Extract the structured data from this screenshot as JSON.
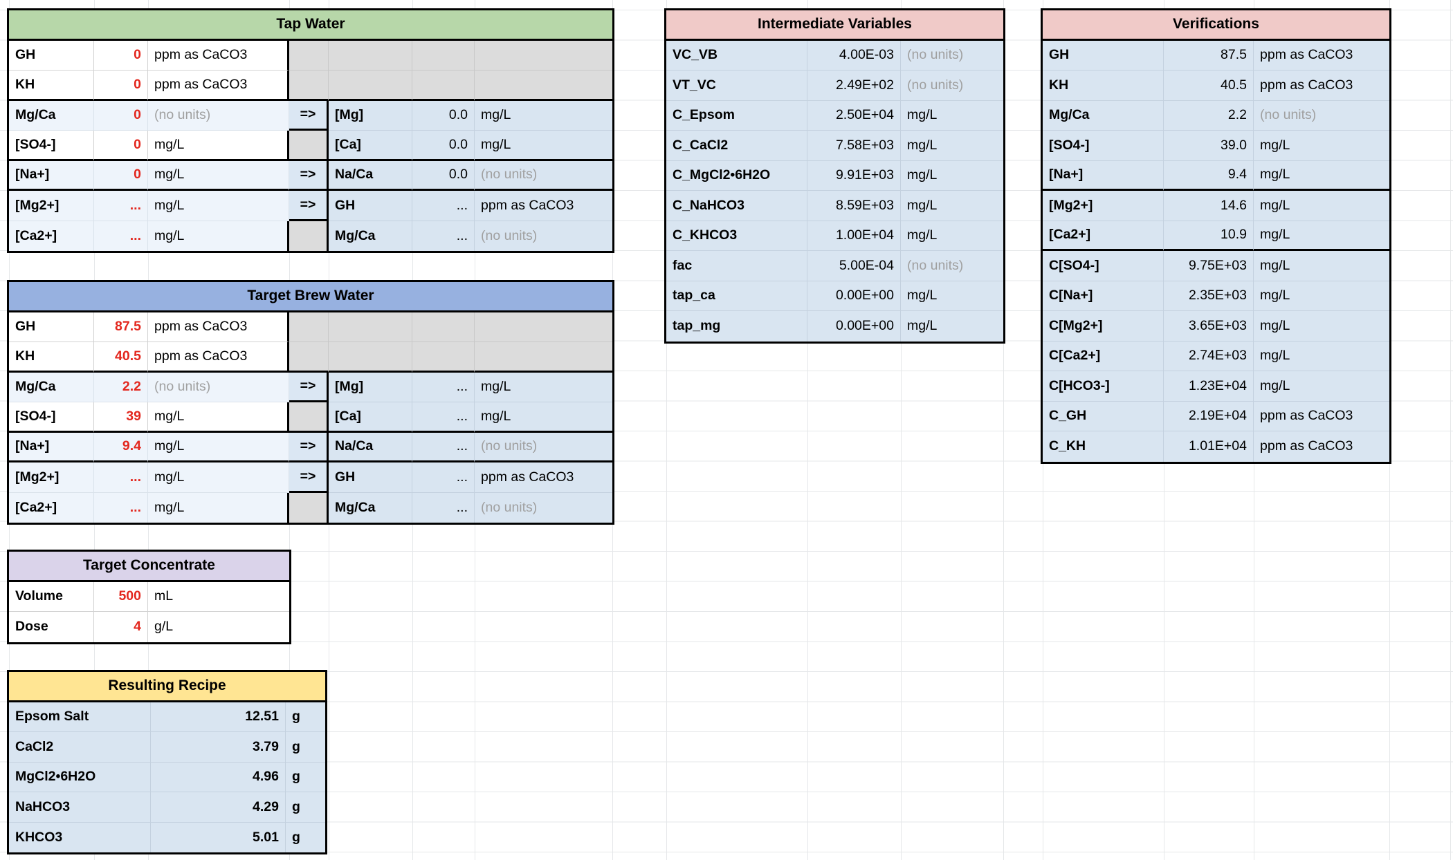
{
  "palette": {
    "tap_header": "#b7d7a9",
    "brew_header": "#97b1e0",
    "pink_header": "#f0cac8",
    "concentrate_header": "#dad3ea",
    "recipe_header": "#ffe593",
    "input_red": "#e3271e",
    "calc_blue": "#d9e5f1",
    "input_blue": "#eef4fb",
    "inactive_gray": "#dcdcdc"
  },
  "tap_water": {
    "title": "Tap Water",
    "rows": [
      {
        "label": "GH",
        "value": "0",
        "unit": "ppm as CaCO3"
      },
      {
        "label": "KH",
        "value": "0",
        "unit": "ppm as CaCO3"
      },
      {
        "label": "Mg/Ca",
        "value": "0",
        "unit": "(no units)",
        "arrow": "=>",
        "out_label": "[Mg]",
        "out_value": "0.0",
        "out_unit": "mg/L"
      },
      {
        "label": "[SO4-]",
        "value": "0",
        "unit": "mg/L",
        "arrow": "",
        "out_label": "[Ca]",
        "out_value": "0.0",
        "out_unit": "mg/L"
      },
      {
        "label": "[Na+]",
        "value": "0",
        "unit": "mg/L",
        "arrow": "=>",
        "out_label": "Na/Ca",
        "out_value": "0.0",
        "out_unit": "(no units)"
      },
      {
        "label": "[Mg2+]",
        "value": "...",
        "unit": "mg/L",
        "arrow": "=>",
        "out_label": "GH",
        "out_value": "...",
        "out_unit": "ppm as CaCO3"
      },
      {
        "label": "[Ca2+]",
        "value": "...",
        "unit": "mg/L",
        "arrow": "",
        "out_label": "Mg/Ca",
        "out_value": "...",
        "out_unit": "(no units)"
      }
    ]
  },
  "target_brew_water": {
    "title": "Target Brew Water",
    "rows": [
      {
        "label": "GH",
        "value": "87.5",
        "unit": "ppm as CaCO3"
      },
      {
        "label": "KH",
        "value": "40.5",
        "unit": "ppm as CaCO3"
      },
      {
        "label": "Mg/Ca",
        "value": "2.2",
        "unit": "(no units)",
        "arrow": "=>",
        "out_label": "[Mg]",
        "out_value": "...",
        "out_unit": "mg/L"
      },
      {
        "label": "[SO4-]",
        "value": "39",
        "unit": "mg/L",
        "arrow": "",
        "out_label": "[Ca]",
        "out_value": "...",
        "out_unit": "mg/L"
      },
      {
        "label": "[Na+]",
        "value": "9.4",
        "unit": "mg/L",
        "arrow": "=>",
        "out_label": "Na/Ca",
        "out_value": "...",
        "out_unit": "(no units)"
      },
      {
        "label": "[Mg2+]",
        "value": "...",
        "unit": "mg/L",
        "arrow": "=>",
        "out_label": "GH",
        "out_value": "...",
        "out_unit": "ppm as CaCO3"
      },
      {
        "label": "[Ca2+]",
        "value": "...",
        "unit": "mg/L",
        "arrow": "",
        "out_label": "Mg/Ca",
        "out_value": "...",
        "out_unit": "(no units)"
      }
    ]
  },
  "target_concentrate": {
    "title": "Target Concentrate",
    "rows": [
      {
        "label": "Volume",
        "value": "500",
        "unit": "mL"
      },
      {
        "label": "Dose",
        "value": "4",
        "unit": "g/L"
      }
    ]
  },
  "resulting_recipe": {
    "title": "Resulting Recipe",
    "rows": [
      {
        "label": "Epsom Salt",
        "value": "12.51",
        "unit": "g"
      },
      {
        "label": "CaCl2",
        "value": "3.79",
        "unit": "g"
      },
      {
        "label": "MgCl2•6H2O",
        "value": "4.96",
        "unit": "g"
      },
      {
        "label": "NaHCO3",
        "value": "4.29",
        "unit": "g"
      },
      {
        "label": "KHCO3",
        "value": "5.01",
        "unit": "g"
      }
    ]
  },
  "intermediate_variables": {
    "title": "Intermediate Variables",
    "rows": [
      {
        "label": "VC_VB",
        "value": "4.00E-03",
        "unit": "(no units)"
      },
      {
        "label": "VT_VC",
        "value": "2.49E+02",
        "unit": "(no units)"
      },
      {
        "label": "C_Epsom",
        "value": "2.50E+04",
        "unit": "mg/L"
      },
      {
        "label": "C_CaCl2",
        "value": "7.58E+03",
        "unit": "mg/L"
      },
      {
        "label": "C_MgCl2•6H2O",
        "value": "9.91E+03",
        "unit": "mg/L"
      },
      {
        "label": "C_NaHCO3",
        "value": "8.59E+03",
        "unit": "mg/L"
      },
      {
        "label": "C_KHCO3",
        "value": "1.00E+04",
        "unit": "mg/L"
      },
      {
        "label": "fac",
        "value": "5.00E-04",
        "unit": "(no units)"
      },
      {
        "label": "tap_ca",
        "value": "0.00E+00",
        "unit": "mg/L"
      },
      {
        "label": "tap_mg",
        "value": "0.00E+00",
        "unit": "mg/L"
      }
    ]
  },
  "verifications": {
    "title": "Verifications",
    "rows": [
      {
        "label": "GH",
        "value": "87.5",
        "unit": "ppm as CaCO3"
      },
      {
        "label": "KH",
        "value": "40.5",
        "unit": "ppm as CaCO3"
      },
      {
        "label": "Mg/Ca",
        "value": "2.2",
        "unit": "(no units)"
      },
      {
        "label": "[SO4-]",
        "value": "39.0",
        "unit": "mg/L"
      },
      {
        "label": "[Na+]",
        "value": "9.4",
        "unit": "mg/L",
        "sep": true
      },
      {
        "label": "[Mg2+]",
        "value": "14.6",
        "unit": "mg/L"
      },
      {
        "label": "[Ca2+]",
        "value": "10.9",
        "unit": "mg/L",
        "sep": true
      },
      {
        "label": "C[SO4-]",
        "value": "9.75E+03",
        "unit": "mg/L"
      },
      {
        "label": "C[Na+]",
        "value": "2.35E+03",
        "unit": "mg/L"
      },
      {
        "label": "C[Mg2+]",
        "value": "3.65E+03",
        "unit": "mg/L"
      },
      {
        "label": "C[Ca2+]",
        "value": "2.74E+03",
        "unit": "mg/L"
      },
      {
        "label": "C[HCO3-]",
        "value": "1.23E+04",
        "unit": "mg/L"
      },
      {
        "label": "C_GH",
        "value": "2.19E+04",
        "unit": "ppm as CaCO3"
      },
      {
        "label": "C_KH",
        "value": "1.01E+04",
        "unit": "ppm as CaCO3"
      }
    ]
  }
}
